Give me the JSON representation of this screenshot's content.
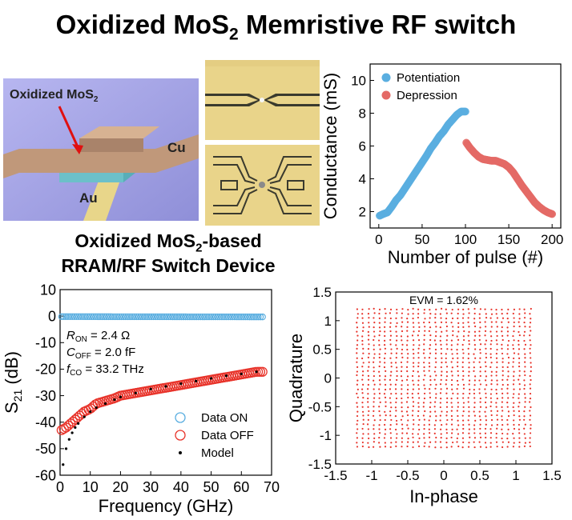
{
  "title": {
    "main": "Oxidized MoS",
    "sub": "2",
    "rest": " Memristive RF switch"
  },
  "device_illustration": {
    "label_oxide": "Oxidized MoS",
    "label_oxide_sub": "2",
    "label_cu": "Cu",
    "label_au": "Au"
  },
  "device_subtitle": {
    "line1_pre": "Oxidized MoS",
    "line1_sub": "2",
    "line1_post": "-based",
    "line2": "RRAM/RF Switch Device"
  },
  "colors": {
    "blue": "#5aaee0",
    "red": "#e8332a",
    "red_light": "#e46a66",
    "gold": "#e9d48a"
  },
  "chart_data": [
    {
      "id": "conductance",
      "type": "scatter",
      "xlabel": "Number of pulse (#)",
      "ylabel": "Conductance (mS)",
      "xlim": [
        -10,
        210
      ],
      "ylim": [
        1,
        11
      ],
      "xticks": [
        0,
        50,
        100,
        150,
        200
      ],
      "yticks": [
        2,
        4,
        6,
        8,
        10
      ],
      "legend": "top",
      "series": [
        {
          "name": "Potentiation",
          "color": "#5aaee0",
          "x": [
            1,
            5,
            10,
            15,
            20,
            25,
            30,
            35,
            40,
            45,
            50,
            55,
            60,
            65,
            70,
            75,
            80,
            85,
            90,
            95,
            100
          ],
          "y": [
            1.75,
            1.85,
            1.95,
            2.3,
            2.7,
            3.0,
            3.4,
            3.8,
            4.2,
            4.6,
            5.0,
            5.4,
            5.85,
            6.2,
            6.6,
            6.9,
            7.3,
            7.6,
            7.9,
            8.1,
            8.1
          ]
        },
        {
          "name": "Depression",
          "color": "#e46a66",
          "x": [
            101,
            105,
            110,
            115,
            120,
            125,
            130,
            135,
            140,
            145,
            150,
            155,
            160,
            165,
            170,
            175,
            180,
            185,
            190,
            195,
            200
          ],
          "y": [
            6.2,
            5.9,
            5.6,
            5.35,
            5.2,
            5.15,
            5.1,
            5.1,
            5.0,
            4.9,
            4.7,
            4.4,
            4.0,
            3.6,
            3.25,
            2.9,
            2.55,
            2.3,
            2.1,
            1.95,
            1.85
          ]
        }
      ]
    },
    {
      "id": "s21",
      "type": "scatter",
      "xlabel": "Frequency (GHz)",
      "ylabel": "S21 (dB)",
      "ylabel_main": "S",
      "ylabel_sub": "21",
      "ylabel_unit": " (dB)",
      "xlim": [
        0,
        70
      ],
      "ylim": [
        -60,
        10
      ],
      "xticks": [
        0,
        10,
        20,
        30,
        40,
        50,
        60,
        70
      ],
      "yticks": [
        10,
        0,
        -10,
        -20,
        -30,
        -40,
        -50,
        -60
      ],
      "legend": "bottom-right",
      "annotations": [
        {
          "sym": "R",
          "sub": "ON",
          "val": " = 2.4 Ω"
        },
        {
          "sym": "C",
          "sub": "OFF",
          "val": " = 2.0 fF"
        },
        {
          "sym": "f",
          "sub": "CO",
          "val": " = 33.2 THz"
        }
      ],
      "series": [
        {
          "name": "Data ON",
          "color": "#5aaee0",
          "kind": "open-circle",
          "x": [
            0.5,
            67
          ],
          "y": [
            -0.2,
            -0.3
          ]
        },
        {
          "name": "Data OFF",
          "color": "#e8332a",
          "kind": "open-circle",
          "x": [
            0.5,
            2,
            4,
            6,
            8,
            10,
            12,
            15,
            18,
            20,
            25,
            30,
            35,
            40,
            45,
            50,
            55,
            60,
            65,
            67
          ],
          "y": [
            -43,
            -42,
            -40,
            -38,
            -36,
            -35,
            -33,
            -32,
            -31,
            -30,
            -29,
            -28,
            -27,
            -26,
            -25,
            -24,
            -23,
            -22,
            -21,
            -21
          ]
        },
        {
          "name": "Model",
          "color": "#000000",
          "kind": "dot",
          "x": [
            1,
            2,
            3,
            4,
            5,
            6,
            8,
            10,
            12,
            15,
            18,
            20,
            25,
            30,
            35,
            40,
            45,
            50,
            55,
            60,
            65
          ],
          "y": [
            -56,
            -50,
            -46.5,
            -44,
            -42,
            -40.5,
            -38,
            -36,
            -34.5,
            -33,
            -31.5,
            -30.5,
            -29,
            -27.5,
            -26.5,
            -25.5,
            -24.5,
            -23.5,
            -22.5,
            -21.8,
            -21
          ]
        }
      ]
    },
    {
      "id": "constellation",
      "type": "scatter",
      "xlabel": "In-phase",
      "ylabel": "Quadrature",
      "annotation": "EVM = 1.62%",
      "xlim": [
        -1.5,
        1.5
      ],
      "ylim": [
        -1.5,
        1.5
      ],
      "xticks": [
        -1.5,
        -1.0,
        -0.5,
        0.0,
        0.5,
        1.0,
        1.5
      ],
      "yticks": [
        1.5,
        1.0,
        0.5,
        0.0,
        -0.5,
        -1.0,
        -1.5
      ],
      "grid_levels": 32,
      "grid_range": [
        -1.2,
        1.2
      ],
      "color": "#e8332a"
    }
  ]
}
